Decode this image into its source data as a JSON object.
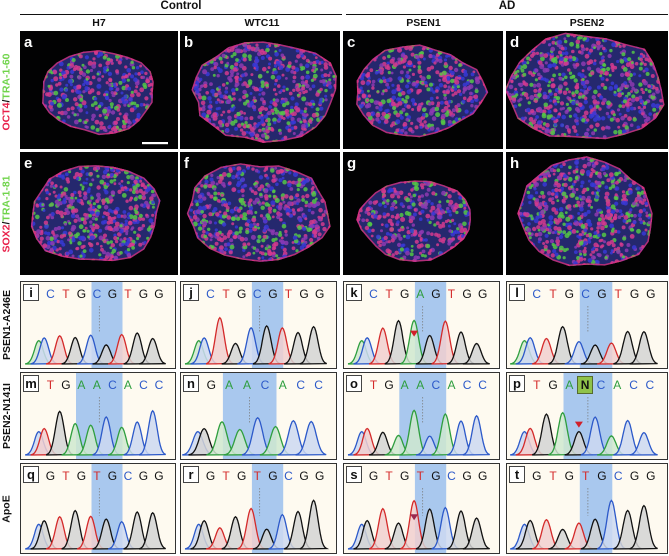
{
  "groups": {
    "control": "Control",
    "ad": "AD"
  },
  "columns": {
    "h7": "H7",
    "wtc11": "WTC11",
    "psen1": "PSEN1",
    "psen2": "PSEN2"
  },
  "row_labels": {
    "r1_a": "OCT4",
    "r1_sep": "/",
    "r1_b": "TRA-1-60",
    "r2_a": "SOX2",
    "r2_sep": "/",
    "r2_b": "TRA-1-81",
    "r3": "PSEN1-A246E",
    "r4": "PSEN2-N141I",
    "r5": "ApoE"
  },
  "colors": {
    "red_stain": "#e8204a",
    "green_stain": "#6fd44a",
    "blue_stain": "#3a3ad8",
    "highlight": "#a9c8ee",
    "trace_bg": "#fefaf0",
    "marker": "#d1202a",
    "marker_apoe": "#9a2850"
  },
  "micro_panels": [
    {
      "label": "a",
      "scale_bar": true
    },
    {
      "label": "b"
    },
    {
      "label": "c"
    },
    {
      "label": "d"
    },
    {
      "label": "e"
    },
    {
      "label": "f"
    },
    {
      "label": "g"
    },
    {
      "label": "h"
    }
  ],
  "seq_panels": [
    {
      "label": "i",
      "seq": [
        "C",
        "T",
        "G",
        "C",
        "G",
        "T",
        "G",
        "G"
      ],
      "marker": false
    },
    {
      "label": "j",
      "seq": [
        "C",
        "T",
        "G",
        "C",
        "G",
        "T",
        "G",
        "G"
      ],
      "marker": false
    },
    {
      "label": "k",
      "seq": [
        "C",
        "T",
        "G",
        "A",
        "G",
        "T",
        "G",
        "G"
      ],
      "marker": true
    },
    {
      "label": "l",
      "seq": [
        "C",
        "T",
        "G",
        "C",
        "G",
        "T",
        "G",
        "G"
      ],
      "marker": false
    },
    {
      "label": "m",
      "seq": [
        "T",
        "G",
        "A",
        "A",
        "C",
        "A",
        "C",
        "C"
      ],
      "marker": false
    },
    {
      "label": "n",
      "seq": [
        "G",
        "A",
        "A",
        "C",
        "A",
        "C",
        "C"
      ],
      "marker": false
    },
    {
      "label": "o",
      "seq": [
        "T",
        "G",
        "A",
        "A",
        "C",
        "A",
        "C",
        "C"
      ],
      "marker": false
    },
    {
      "label": "p",
      "seq": [
        "T",
        "G",
        "A",
        "N",
        "C",
        "A",
        "C",
        "C"
      ],
      "marker": true
    },
    {
      "label": "q",
      "seq": [
        "G",
        "T",
        "G",
        "T",
        "G",
        "C",
        "G",
        "G"
      ],
      "marker": false
    },
    {
      "label": "r",
      "seq": [
        "G",
        "T",
        "G",
        "T",
        "G",
        "C",
        "G",
        "G"
      ],
      "marker": false
    },
    {
      "label": "s",
      "seq": [
        "G",
        "T",
        "G",
        "T",
        "G",
        "C",
        "G",
        "G"
      ],
      "marker": true
    },
    {
      "label": "t",
      "seq": [
        "G",
        "T",
        "G",
        "T",
        "G",
        "C",
        "G",
        "G"
      ],
      "marker": false
    }
  ]
}
